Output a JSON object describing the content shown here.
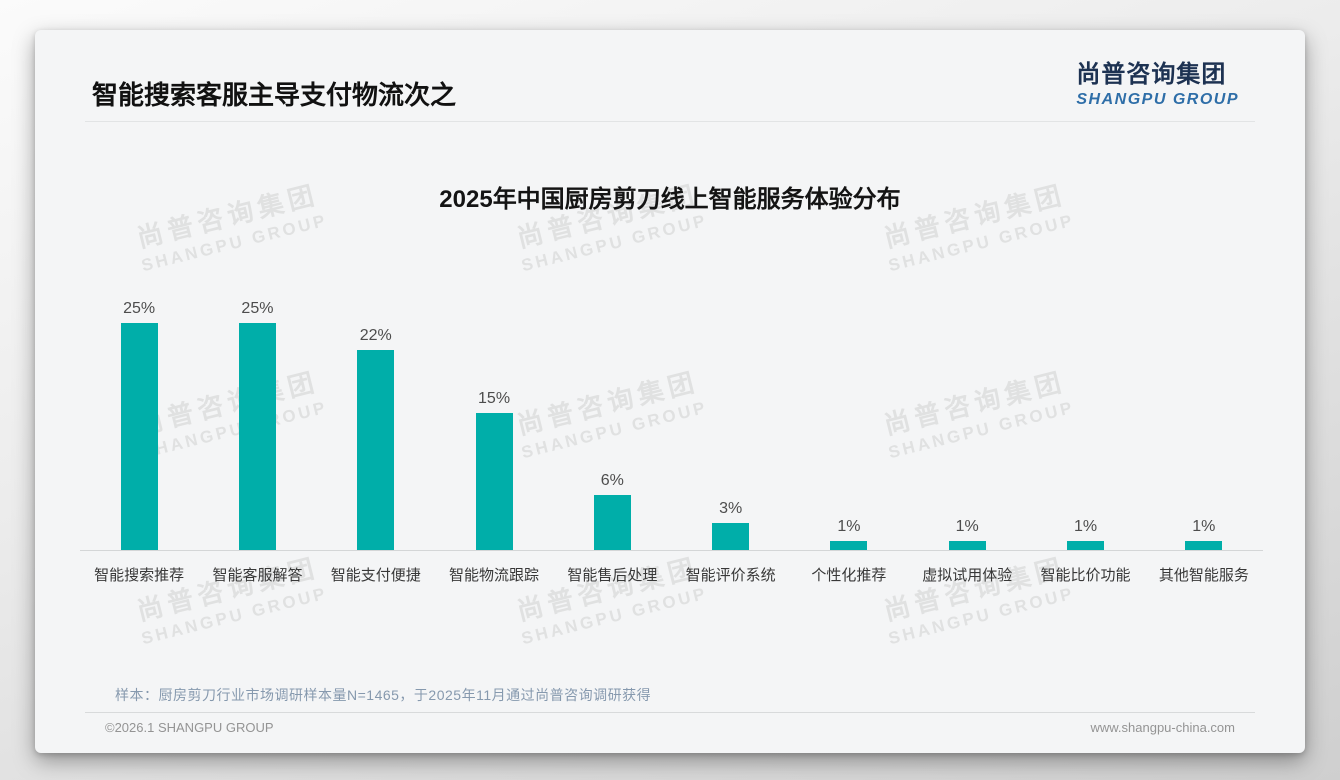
{
  "header": {
    "title": "智能搜索客服主导支付物流次之",
    "logo_cn": "尚普咨询集团",
    "logo_en": "SHANGPU GROUP"
  },
  "watermark": {
    "line1": "尚普咨询集团",
    "line2": "SHANGPU GROUP"
  },
  "chart_data": {
    "type": "bar",
    "title": "2025年中国厨房剪刀线上智能服务体验分布",
    "categories": [
      "智能搜索推荐",
      "智能客服解答",
      "智能支付便捷",
      "智能物流跟踪",
      "智能售后处理",
      "智能评价系统",
      "个性化推荐",
      "虚拟试用体验",
      "智能比价功能",
      "其他智能服务"
    ],
    "values": [
      25,
      25,
      22,
      15,
      6,
      3,
      1,
      1,
      1,
      1
    ],
    "value_labels": [
      "25%",
      "25%",
      "22%",
      "15%",
      "6%",
      "3%",
      "1%",
      "1%",
      "1%",
      "1%"
    ],
    "unit": "%",
    "bar_color": "#00AEA9",
    "xlabel": "",
    "ylabel": "",
    "ylim": [
      0,
      25
    ],
    "grid": false,
    "legend_position": "none"
  },
  "footnote": "样本：厨房剪刀行业市场调研样本量N=1465，于2025年11月通过尚普咨询调研获得",
  "footer": {
    "copyright": "©2026.1 SHANGPU GROUP",
    "website": "www.shangpu-china.com"
  }
}
